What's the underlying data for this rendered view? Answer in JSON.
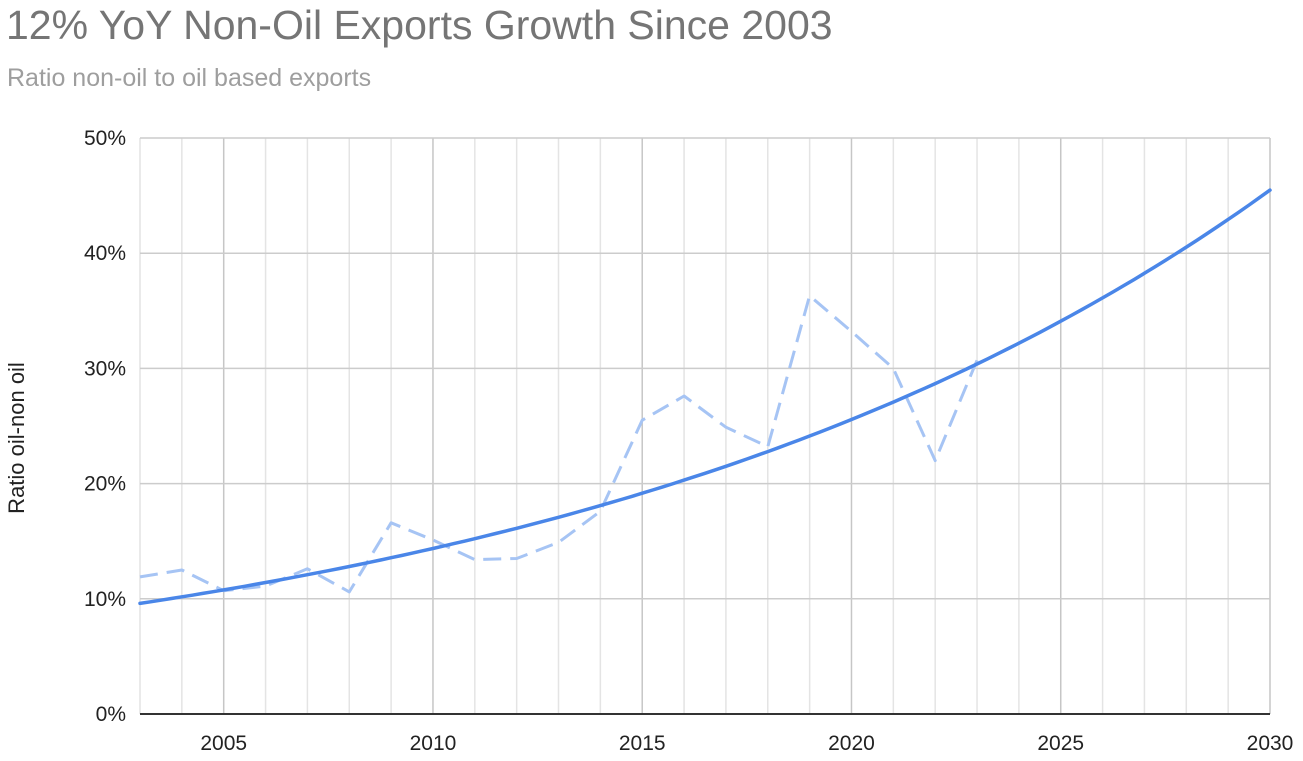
{
  "chart_data": {
    "type": "line",
    "title": "12% YoY Non-Oil Exports Growth Since 2003",
    "subtitle": "Ratio non-oil to oil based exports",
    "ylabel": "Ratio oil-non oil",
    "xlabel": "",
    "xlim": [
      2003,
      2030
    ],
    "ylim": [
      0,
      0.5
    ],
    "x_ticks": [
      "2005",
      "2010",
      "2015",
      "2020",
      "2025",
      "2030"
    ],
    "y_ticks": [
      "0%",
      "10%",
      "20%",
      "30%",
      "40%",
      "50%"
    ],
    "grid": true,
    "legend": "none",
    "series": [
      {
        "role": "actual",
        "style": "dashed",
        "color": "#a6c4f4",
        "x": [
          2003,
          2004,
          2005,
          2006,
          2007,
          2008,
          2009,
          2010,
          2011,
          2012,
          2013,
          2014,
          2015,
          2016,
          2017,
          2018,
          2019,
          2020,
          2021,
          2022,
          2023
        ],
        "values": [
          0.119,
          0.125,
          0.107,
          0.111,
          0.126,
          0.106,
          0.166,
          0.151,
          0.134,
          0.135,
          0.149,
          0.176,
          0.255,
          0.276,
          0.249,
          0.232,
          0.363,
          0.332,
          0.3,
          0.22,
          0.307
        ]
      },
      {
        "role": "trendline",
        "style": "solid",
        "color": "#4a86e8",
        "start_x": 2003,
        "end_x": 2030,
        "start_value": 0.096,
        "growth_rate": 0.0593
      }
    ]
  }
}
